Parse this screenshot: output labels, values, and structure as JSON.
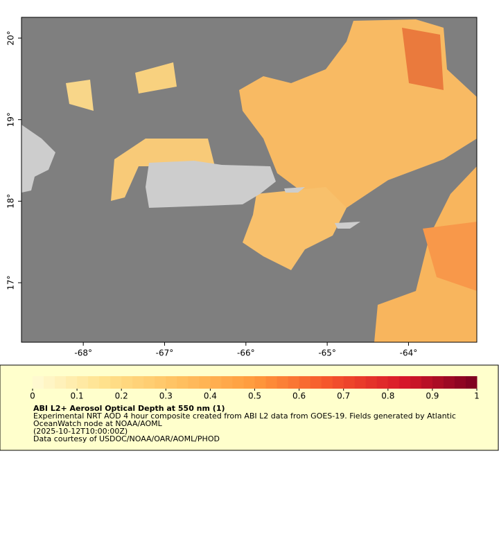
{
  "map": {
    "xlim": [
      -68.76,
      -63.16
    ],
    "ylim": [
      16.27,
      20.255
    ],
    "xticks": [
      {
        "value": -68,
        "label": "-68°"
      },
      {
        "value": -67,
        "label": "-67°"
      },
      {
        "value": -66,
        "label": "-66°"
      },
      {
        "value": -65,
        "label": "-65°"
      },
      {
        "value": -64,
        "label": "-64°"
      }
    ],
    "yticks": [
      {
        "value": 17,
        "label": "17°"
      },
      {
        "value": 18,
        "label": "18°"
      },
      {
        "value": 19,
        "label": "19°"
      },
      {
        "value": 20,
        "label": "20°"
      }
    ]
  },
  "legend": {
    "title": "ABI L2+ Aerosol Optical Depth at 550 nm (1)",
    "lines": [
      "Experimental NRT AOD 4 hour composite created from ABI L2 data from GOES-19. Fields generated by Atlantic",
      "OceanWatch node at NOAA/AOML",
      "(2025-10-12T10:00:00Z)",
      "Data courtesy of USDOC/NOAA/OAR/AOML/PHOD"
    ],
    "range": [
      0,
      1
    ],
    "ticks": [
      0,
      0.1,
      0.2,
      0.3,
      0.4,
      0.5,
      0.6,
      0.7,
      0.8,
      0.9,
      1
    ],
    "colors": [
      "#fffbd6",
      "#ffe08a",
      "#ffc060",
      "#ff9a3c",
      "#f5552c",
      "#d8182a",
      "#7a0020"
    ]
  }
}
